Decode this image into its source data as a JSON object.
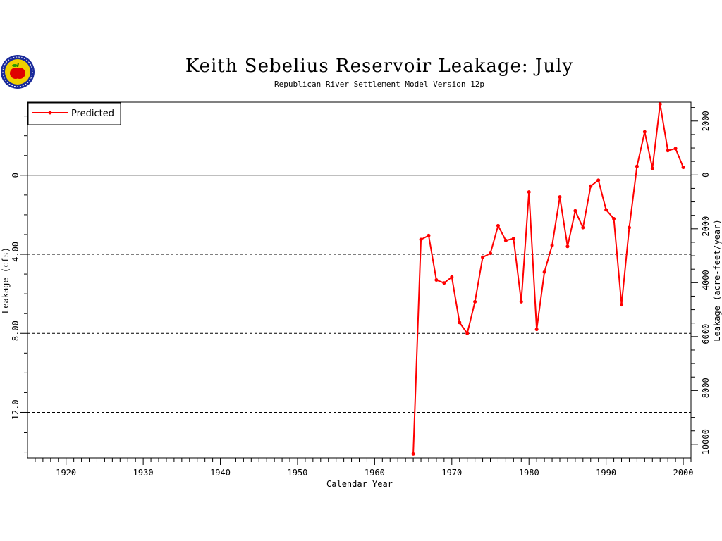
{
  "logo": {
    "icon": "apple-seal-icon",
    "colors": {
      "ring": "#1a2a9a",
      "fill": "#f0d000",
      "apple": "#e00000"
    }
  },
  "chart_data": {
    "type": "line",
    "title": "Keith Sebelius Reservoir Leakage: July",
    "subtitle": "Republican River Settlement Model Version 12p",
    "xlabel": "Calendar Year",
    "ylabel": "Leakage (cfs)",
    "y2label": "Leakage (acre-feet/year)",
    "xlim": [
      1915,
      2001
    ],
    "ylim": [
      -14.3,
      3.7
    ],
    "y2lim": [
      -10500,
      2700
    ],
    "x_ticks": [
      1920,
      1930,
      1940,
      1950,
      1960,
      1970,
      1980,
      1990,
      2000
    ],
    "y_ticks": [
      0,
      -4.0,
      -8.0,
      -12.0
    ],
    "y_tick_labels": [
      "0",
      "-4.00",
      "-8.00",
      "-12.0"
    ],
    "y2_ticks": [
      2000,
      0,
      -2000,
      -4000,
      -6000,
      -8000,
      -10000
    ],
    "y2_tick_labels": [
      "2000",
      "0",
      "-2000",
      "-4000",
      "-6000",
      "-8000",
      "-10000"
    ],
    "ref_lines": [
      {
        "y": 0,
        "style": "solid"
      },
      {
        "y": -4.0,
        "style": "dashed"
      },
      {
        "y": -8.0,
        "style": "dashed"
      },
      {
        "y": -12.0,
        "style": "dashed"
      }
    ],
    "legend": {
      "position": "top-left",
      "entries": [
        "Predicted"
      ]
    },
    "series": [
      {
        "name": "Predicted",
        "color": "#ff0000",
        "x": [
          1965,
          1966,
          1967,
          1968,
          1969,
          1970,
          1971,
          1972,
          1973,
          1974,
          1975,
          1976,
          1977,
          1978,
          1979,
          1980,
          1981,
          1982,
          1983,
          1984,
          1985,
          1986,
          1987,
          1988,
          1989,
          1990,
          1991,
          1992,
          1993,
          1994,
          1995,
          1996,
          1997,
          1998,
          1999,
          2000
        ],
        "y": [
          -14.1,
          -3.25,
          -3.05,
          -5.3,
          -5.45,
          -5.15,
          -7.45,
          -8.0,
          -6.4,
          -4.15,
          -3.95,
          -2.55,
          -3.3,
          -3.2,
          -6.4,
          -0.85,
          -7.8,
          -4.9,
          -3.55,
          -1.1,
          -3.6,
          -1.8,
          -2.65,
          -0.55,
          -0.25,
          -1.75,
          -2.2,
          -6.55,
          -2.65,
          0.45,
          2.2,
          0.35,
          3.6,
          1.25,
          1.35,
          0.4
        ]
      }
    ]
  }
}
